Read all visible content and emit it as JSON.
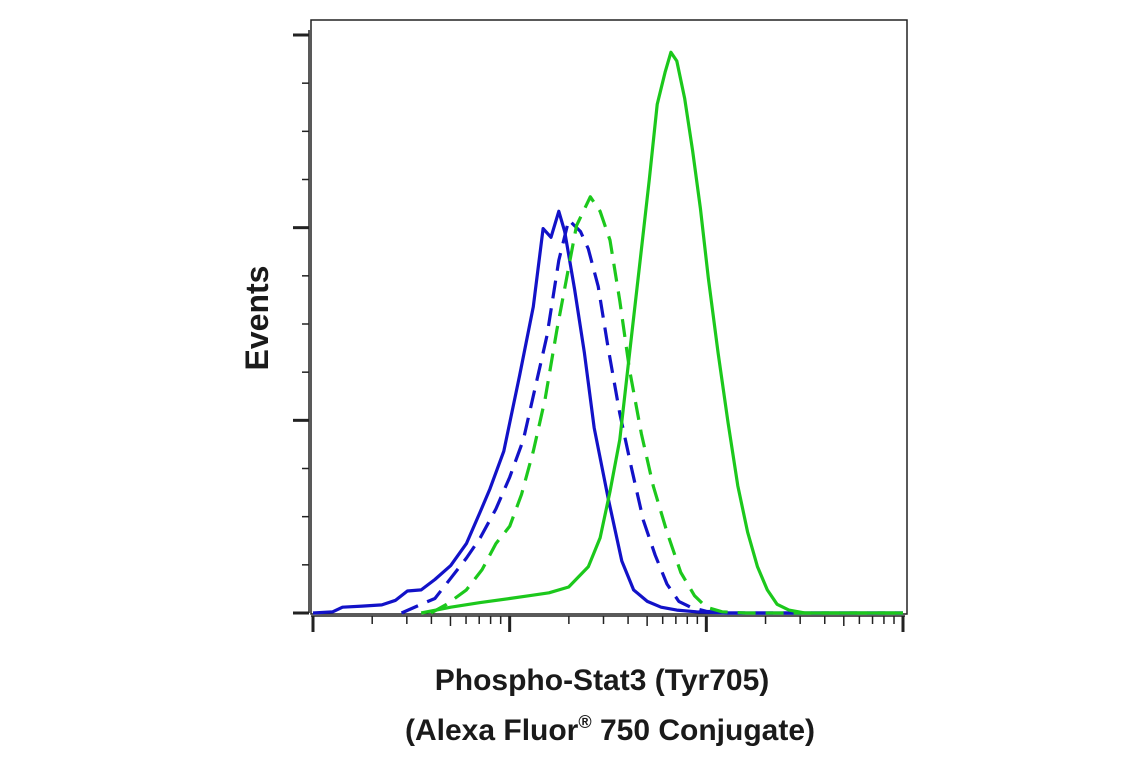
{
  "chart_data": {
    "type": "line",
    "title": "",
    "xlabel_line1": "Phospho-Stat3 (Tyr705)",
    "xlabel_line2_prefix": "(Alexa Fluor",
    "xlabel_line2_sup": "®",
    "xlabel_line2_suffix": " 750 Conjugate)",
    "ylabel": "Events",
    "x_scale": "log",
    "xlim_decades": [
      0,
      3
    ],
    "ylim": [
      0,
      100
    ],
    "grid": false,
    "legend": "none",
    "series": [
      {
        "color": "#1212c8",
        "dash": "solid",
        "points": [
          [
            0.0,
            0.0
          ],
          [
            0.1,
            0.2
          ],
          [
            0.15,
            1.0
          ],
          [
            0.25,
            1.2
          ],
          [
            0.35,
            1.4
          ],
          [
            0.42,
            2.2
          ],
          [
            0.48,
            3.8
          ],
          [
            0.55,
            4.0
          ],
          [
            0.62,
            5.8
          ],
          [
            0.7,
            8.2
          ],
          [
            0.78,
            12.0
          ],
          [
            0.85,
            17.5
          ],
          [
            0.9,
            21.5
          ],
          [
            0.97,
            28.0
          ],
          [
            1.05,
            41.0
          ],
          [
            1.12,
            53.0
          ],
          [
            1.17,
            66.5
          ],
          [
            1.21,
            65.0
          ],
          [
            1.25,
            69.5
          ],
          [
            1.28,
            66.0
          ],
          [
            1.33,
            56.0
          ],
          [
            1.38,
            45.0
          ],
          [
            1.43,
            32.0
          ],
          [
            1.5,
            20.0
          ],
          [
            1.57,
            9.0
          ],
          [
            1.63,
            4.0
          ],
          [
            1.7,
            2.0
          ],
          [
            1.77,
            1.0
          ],
          [
            1.85,
            0.5
          ],
          [
            1.95,
            0.2
          ],
          [
            2.1,
            0.0
          ],
          [
            3.0,
            0.0
          ]
        ]
      },
      {
        "color": "#1212c8",
        "dash": "dashed",
        "points": [
          [
            0.45,
            0.0
          ],
          [
            0.55,
            1.5
          ],
          [
            0.62,
            2.5
          ],
          [
            0.7,
            6.0
          ],
          [
            0.78,
            9.5
          ],
          [
            0.85,
            13.0
          ],
          [
            0.93,
            18.0
          ],
          [
            1.0,
            23.5
          ],
          [
            1.07,
            30.0
          ],
          [
            1.13,
            39.0
          ],
          [
            1.19,
            48.0
          ],
          [
            1.25,
            61.0
          ],
          [
            1.3,
            68.0
          ],
          [
            1.36,
            66.0
          ],
          [
            1.4,
            63.0
          ],
          [
            1.45,
            56.5
          ],
          [
            1.5,
            46.0
          ],
          [
            1.56,
            34.5
          ],
          [
            1.62,
            25.0
          ],
          [
            1.68,
            16.0
          ],
          [
            1.74,
            10.0
          ],
          [
            1.8,
            5.0
          ],
          [
            1.86,
            2.0
          ],
          [
            1.92,
            1.0
          ],
          [
            2.0,
            0.3
          ],
          [
            2.1,
            0.0
          ],
          [
            3.0,
            0.0
          ]
        ]
      },
      {
        "color": "#1cc81c",
        "dash": "dashed",
        "points": [
          [
            0.6,
            0.0
          ],
          [
            0.68,
            1.5
          ],
          [
            0.78,
            4.0
          ],
          [
            0.86,
            7.5
          ],
          [
            0.93,
            12.0
          ],
          [
            1.0,
            15.0
          ],
          [
            1.06,
            20.5
          ],
          [
            1.12,
            28.0
          ],
          [
            1.18,
            37.0
          ],
          [
            1.24,
            49.0
          ],
          [
            1.29,
            58.0
          ],
          [
            1.34,
            67.0
          ],
          [
            1.41,
            72.0
          ],
          [
            1.46,
            69.5
          ],
          [
            1.51,
            64.5
          ],
          [
            1.56,
            54.0
          ],
          [
            1.61,
            42.0
          ],
          [
            1.67,
            31.0
          ],
          [
            1.73,
            22.0
          ],
          [
            1.8,
            14.0
          ],
          [
            1.87,
            7.0
          ],
          [
            1.94,
            3.0
          ],
          [
            2.0,
            1.0
          ],
          [
            2.08,
            0.2
          ],
          [
            2.2,
            0.0
          ],
          [
            3.0,
            0.0
          ]
        ]
      },
      {
        "color": "#1cc81c",
        "dash": "solid",
        "points": [
          [
            0.55,
            0.0
          ],
          [
            0.7,
            1.0
          ],
          [
            0.85,
            1.8
          ],
          [
            1.0,
            2.5
          ],
          [
            1.1,
            3.0
          ],
          [
            1.2,
            3.5
          ],
          [
            1.3,
            4.5
          ],
          [
            1.4,
            8.0
          ],
          [
            1.46,
            13.0
          ],
          [
            1.51,
            21.0
          ],
          [
            1.56,
            30.0
          ],
          [
            1.61,
            45.0
          ],
          [
            1.66,
            60.0
          ],
          [
            1.71,
            75.0
          ],
          [
            1.75,
            88.0
          ],
          [
            1.79,
            93.5
          ],
          [
            1.82,
            97.0
          ],
          [
            1.85,
            95.5
          ],
          [
            1.89,
            89.0
          ],
          [
            1.93,
            80.0
          ],
          [
            1.97,
            70.0
          ],
          [
            2.01,
            58.0
          ],
          [
            2.06,
            45.0
          ],
          [
            2.11,
            33.0
          ],
          [
            2.16,
            22.0
          ],
          [
            2.21,
            14.0
          ],
          [
            2.26,
            8.0
          ],
          [
            2.31,
            4.0
          ],
          [
            2.36,
            1.5
          ],
          [
            2.42,
            0.5
          ],
          [
            2.5,
            0.0
          ],
          [
            3.0,
            0.0
          ]
        ]
      }
    ]
  }
}
